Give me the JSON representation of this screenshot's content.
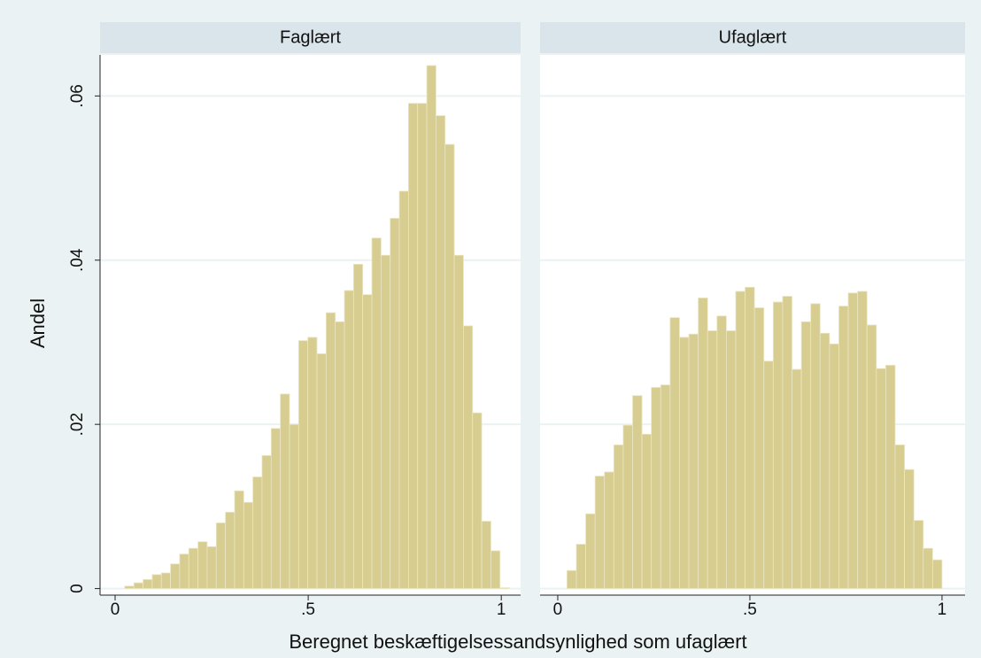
{
  "shared": {
    "ylabel": "Andel",
    "xlabel": "Beregnet beskæftigelsessandsynlighed som ufaglært"
  },
  "chart_data": [
    {
      "type": "histogram",
      "title": "Faglært",
      "color": "#d7cd90",
      "bins": [
        0.025,
        0.0487,
        0.0724,
        0.0961,
        0.1198,
        0.1435,
        0.1672,
        0.1909,
        0.2146,
        0.2383,
        0.262,
        0.2857,
        0.3094,
        0.3331,
        0.3568,
        0.3805,
        0.4042,
        0.4279,
        0.4516,
        0.4753,
        0.499,
        0.5227,
        0.5464,
        0.5701,
        0.5938,
        0.6175,
        0.6412,
        0.6649,
        0.6886,
        0.7123,
        0.736,
        0.7597,
        0.7834,
        0.8071,
        0.8308,
        0.8545,
        0.8782,
        0.9019,
        0.9256,
        0.9493,
        0.973,
        0.9967,
        1.0204
      ],
      "values": [
        0.0003,
        0.0007,
        0.0011,
        0.0017,
        0.0019,
        0.003,
        0.0042,
        0.0049,
        0.0057,
        0.0051,
        0.008,
        0.0093,
        0.0119,
        0.0105,
        0.0136,
        0.0162,
        0.0195,
        0.0237,
        0.02,
        0.0302,
        0.0306,
        0.0286,
        0.0336,
        0.0325,
        0.0363,
        0.0395,
        0.0358,
        0.0427,
        0.0406,
        0.0451,
        0.0484,
        0.0591,
        0.0591,
        0.0637,
        0.0576,
        0.0541,
        0.0406,
        0.032,
        0.0214,
        0.0082,
        0.0046,
        0.0001
      ],
      "xlim": [
        -0.039,
        1.05
      ],
      "ylim": [
        -0.0008,
        0.065
      ],
      "xticks": [
        0,
        {
          "value": 0.5,
          "label": ".5"
        },
        1
      ],
      "yticks": [
        0,
        {
          "value": 0.02,
          "label": ".02"
        },
        {
          "value": 0.04,
          "label": ".04"
        },
        {
          "value": 0.06,
          "label": ".06"
        }
      ],
      "grid": true
    },
    {
      "type": "histogram",
      "title": "Ufaglært",
      "color": "#d7cd90",
      "bins": [
        0.024,
        0.0484,
        0.0728,
        0.0972,
        0.1216,
        0.146,
        0.1704,
        0.1948,
        0.2192,
        0.2436,
        0.268,
        0.2924,
        0.3168,
        0.3412,
        0.3656,
        0.39,
        0.4144,
        0.4388,
        0.4632,
        0.4876,
        0.512,
        0.5364,
        0.5608,
        0.5852,
        0.6096,
        0.634,
        0.6584,
        0.6828,
        0.7072,
        0.7316,
        0.756,
        0.7804,
        0.8048,
        0.8292,
        0.8536,
        0.878,
        0.9024,
        0.9268,
        0.9512,
        0.9756,
        1.0
      ],
      "values": [
        0.0022,
        0.0054,
        0.0091,
        0.0137,
        0.0142,
        0.0175,
        0.0199,
        0.0235,
        0.0188,
        0.0245,
        0.0248,
        0.033,
        0.0306,
        0.031,
        0.0354,
        0.0314,
        0.0332,
        0.0314,
        0.0362,
        0.0367,
        0.0342,
        0.0277,
        0.0349,
        0.0356,
        0.0267,
        0.0325,
        0.0347,
        0.0311,
        0.0298,
        0.0344,
        0.036,
        0.0362,
        0.0321,
        0.0268,
        0.0272,
        0.0175,
        0.0145,
        0.0083,
        0.0049,
        0.0035
      ],
      "xlim": [
        -0.046,
        1.06
      ],
      "ylim": [
        -0.0008,
        0.065
      ],
      "xticks": [
        0,
        {
          "value": 0.5,
          "label": ".5"
        },
        1
      ],
      "grid": true
    }
  ]
}
